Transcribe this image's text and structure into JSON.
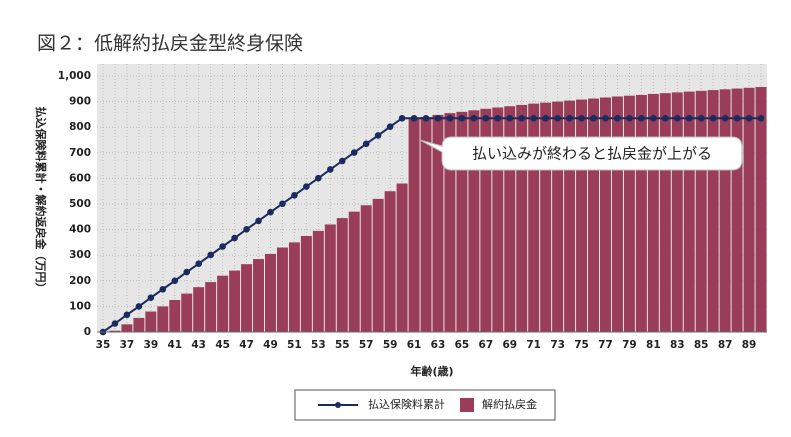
{
  "chart_data": {
    "type": "bar+line",
    "title": "図２：低解約払戻金型終身保険",
    "x_label": "年齢(歳)",
    "y_label": "払込保険料累計・解約返戻金（万円）",
    "annotation": "払い込みが終わると払戻金が上がる",
    "categories": [
      "35",
      null,
      "37",
      null,
      "39",
      null,
      "41",
      null,
      "43",
      null,
      "45",
      null,
      "47",
      null,
      "49",
      null,
      "51",
      null,
      "53",
      null,
      "55",
      null,
      "57",
      null,
      "59",
      null,
      "61",
      null,
      "63",
      null,
      "65",
      null,
      "67",
      null,
      "69",
      null,
      "71",
      null,
      "73",
      null,
      "75",
      null,
      "77",
      null,
      "79",
      null,
      "81",
      null,
      "83",
      null,
      "85",
      null,
      "87",
      null,
      "89",
      null
    ],
    "series": [
      {
        "name": "払込保険料累計",
        "kind": "line",
        "color": "#1c2b5e",
        "values": [
          0,
          33,
          67,
          100,
          134,
          167,
          200,
          234,
          267,
          301,
          334,
          367,
          401,
          434,
          468,
          501,
          534,
          568,
          601,
          635,
          668,
          701,
          735,
          768,
          802,
          835,
          835,
          835,
          835,
          835,
          835,
          835,
          835,
          835,
          835,
          835,
          835,
          835,
          835,
          835,
          835,
          835,
          835,
          835,
          835,
          835,
          835,
          835,
          835,
          835,
          835,
          835,
          835,
          835,
          835,
          835
        ]
      },
      {
        "name": "解約払戻金",
        "kind": "bar",
        "color": "#9a3d58",
        "values": [
          0,
          5,
          30,
          55,
          80,
          100,
          125,
          150,
          175,
          195,
          220,
          240,
          265,
          285,
          305,
          330,
          350,
          375,
          395,
          420,
          445,
          470,
          495,
          520,
          550,
          580,
          835,
          840,
          848,
          855,
          860,
          866,
          872,
          877,
          882,
          887,
          892,
          896,
          900,
          904,
          908,
          912,
          916,
          920,
          923,
          926,
          930,
          933,
          936,
          939,
          942,
          945,
          948,
          951,
          954,
          957
        ]
      }
    ],
    "ylim": [
      0,
      1000
    ],
    "yticks": [
      0,
      100,
      200,
      300,
      400,
      500,
      600,
      700,
      800,
      900,
      {
        "value": 1000,
        "label": "1,000"
      }
    ],
    "grid": true
  }
}
